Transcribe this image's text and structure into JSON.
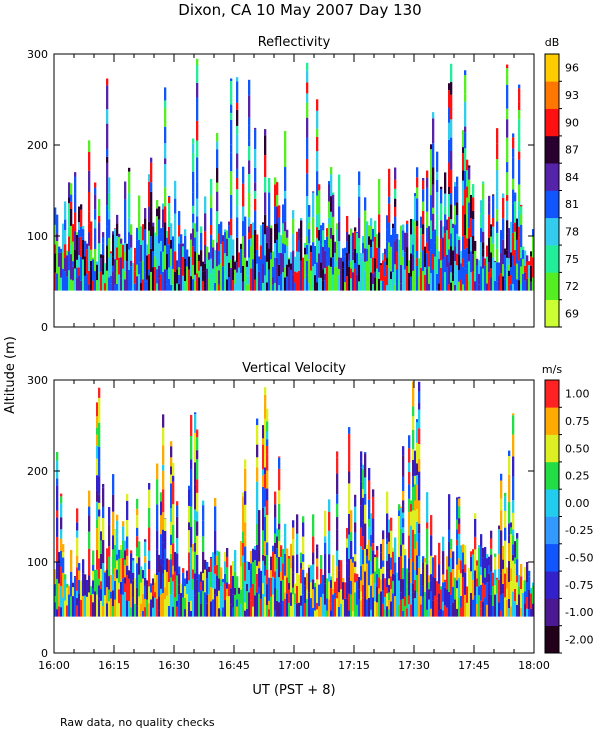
{
  "figure": {
    "title": "Dixon, CA 10 May 2007  Day 130",
    "ylabel": "Altitude (m)",
    "xlabel": "UT  (PST + 8)",
    "note": "Raw data, no quality checks"
  },
  "chart_data": [
    {
      "type": "heatmap",
      "title": "Reflectivity",
      "x_ticks": [
        "16:00",
        "16:15",
        "16:30",
        "16:45",
        "17:00",
        "17:15",
        "17:30",
        "17:45",
        "18:00"
      ],
      "y_ticks": [
        "0",
        "100",
        "200",
        "300"
      ],
      "ylim": [
        0,
        300
      ],
      "x_range": [
        "16:00",
        "18:00"
      ],
      "data_min_altitude": 40,
      "colorbar": {
        "unit": "dB",
        "labels": [
          "69",
          "72",
          "75",
          "78",
          "81",
          "84",
          "87",
          "90",
          "93",
          "96"
        ],
        "colors": [
          "#ccff33",
          "#55ee22",
          "#22ee99",
          "#33ccee",
          "#1155ff",
          "#5522aa",
          "#2a0030",
          "#ff1111",
          "#ff7700",
          "#ffcc00"
        ]
      },
      "dominant_colors": [
        "#33ccee",
        "#1155ff",
        "#1155ff",
        "#5522aa",
        "#22ee99",
        "#2a0030",
        "#55ee22",
        "#ff1111"
      ]
    },
    {
      "type": "heatmap",
      "title": "Vertical Velocity",
      "x_ticks": [
        "16:00",
        "16:15",
        "16:30",
        "16:45",
        "17:00",
        "17:15",
        "17:30",
        "17:45",
        "18:00"
      ],
      "y_ticks": [
        "0",
        "100",
        "200",
        "300"
      ],
      "ylim": [
        0,
        300
      ],
      "x_range": [
        "16:00",
        "18:00"
      ],
      "data_min_altitude": 40,
      "colorbar": {
        "unit": "m/s",
        "labels": [
          "-2.00",
          "-1.00",
          "-0.75",
          "-0.50",
          "-0.25",
          "0.00",
          "0.25",
          "0.50",
          "0.75",
          "1.00"
        ],
        "colors": [
          "#22001a",
          "#4a1890",
          "#3322cc",
          "#1155ff",
          "#3399ff",
          "#22ccee",
          "#22dd44",
          "#ddee22",
          "#ffaa00",
          "#ff2222"
        ]
      },
      "dominant_colors": [
        "#4a1890",
        "#3322cc",
        "#1155ff",
        "#22ccee",
        "#22dd44",
        "#ddee22",
        "#ffaa00",
        "#ff2222"
      ]
    }
  ]
}
